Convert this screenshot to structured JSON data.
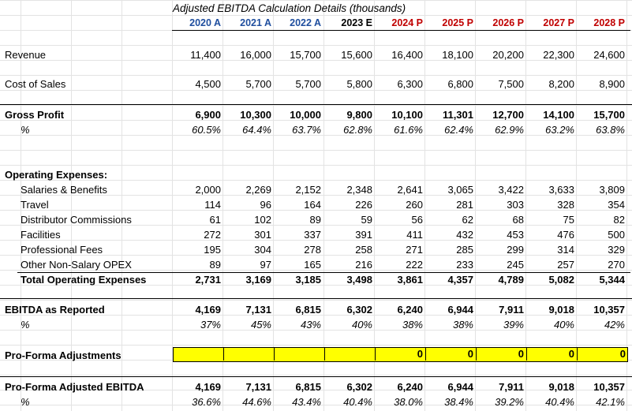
{
  "title": "Adjusted EBITDA Calculation Details (thousands)",
  "columns": [
    {
      "label": "2020 A",
      "color": "#1f4e9e"
    },
    {
      "label": "2021 A",
      "color": "#1f4e9e"
    },
    {
      "label": "2022 A",
      "color": "#1f4e9e"
    },
    {
      "label": "2023 E",
      "color": "#000000"
    },
    {
      "label": "2024 P",
      "color": "#c00000"
    },
    {
      "label": "2025 P",
      "color": "#c00000"
    },
    {
      "label": "2026 P",
      "color": "#c00000"
    },
    {
      "label": "2027 P",
      "color": "#c00000"
    },
    {
      "label": "2028 P",
      "color": "#c00000"
    }
  ],
  "revenue": {
    "label": "Revenue",
    "values": [
      "11,400",
      "16,000",
      "15,700",
      "15,600",
      "16,400",
      "18,100",
      "20,200",
      "22,300",
      "24,600"
    ]
  },
  "cost_of_sales": {
    "label": "Cost of Sales",
    "values": [
      "4,500",
      "5,700",
      "5,700",
      "5,800",
      "6,300",
      "6,800",
      "7,500",
      "8,200",
      "8,900"
    ]
  },
  "gross_profit": {
    "label": "Gross Profit",
    "values": [
      "6,900",
      "10,300",
      "10,000",
      "9,800",
      "10,100",
      "11,301",
      "12,700",
      "14,100",
      "15,700"
    ]
  },
  "gross_profit_pct": {
    "label": "%",
    "values": [
      "60.5%",
      "64.4%",
      "63.7%",
      "62.8%",
      "61.6%",
      "62.4%",
      "62.9%",
      "63.2%",
      "63.8%"
    ]
  },
  "opex_header": "Operating Expenses:",
  "opex_items": [
    {
      "label": "Salaries & Benefits",
      "values": [
        "2,000",
        "2,269",
        "2,152",
        "2,348",
        "2,641",
        "3,065",
        "3,422",
        "3,633",
        "3,809"
      ]
    },
    {
      "label": "Travel",
      "values": [
        "114",
        "96",
        "164",
        "226",
        "260",
        "281",
        "303",
        "328",
        "354"
      ]
    },
    {
      "label": "Distributor Commissions",
      "values": [
        "61",
        "102",
        "89",
        "59",
        "56",
        "62",
        "68",
        "75",
        "82"
      ]
    },
    {
      "label": "Facilities",
      "values": [
        "272",
        "301",
        "337",
        "391",
        "411",
        "432",
        "453",
        "476",
        "500"
      ]
    },
    {
      "label": "Professional Fees",
      "values": [
        "195",
        "304",
        "278",
        "258",
        "271",
        "285",
        "299",
        "314",
        "329"
      ]
    },
    {
      "label": "Other Non-Salary OPEX",
      "values": [
        "89",
        "97",
        "165",
        "216",
        "222",
        "233",
        "245",
        "257",
        "270"
      ]
    }
  ],
  "total_opex": {
    "label": "Total Operating Expenses",
    "values": [
      "2,731",
      "3,169",
      "3,185",
      "3,498",
      "3,861",
      "4,357",
      "4,789",
      "5,082",
      "5,344"
    ]
  },
  "ebitda_reported": {
    "label": "EBITDA as Reported",
    "values": [
      "4,169",
      "7,131",
      "6,815",
      "6,302",
      "6,240",
      "6,944",
      "7,911",
      "9,018",
      "10,357"
    ]
  },
  "ebitda_reported_pct": {
    "label": "%",
    "values": [
      "37%",
      "45%",
      "43%",
      "40%",
      "38%",
      "38%",
      "39%",
      "40%",
      "42%"
    ]
  },
  "proforma_adjustments": {
    "label": "Pro-Forma Adjustments",
    "values": [
      "",
      "",
      "",
      "",
      "0",
      "0",
      "0",
      "0",
      "0"
    ]
  },
  "proforma_ebitda": {
    "label": "Pro-Forma Adjusted EBITDA",
    "values": [
      "4,169",
      "7,131",
      "6,815",
      "6,302",
      "6,240",
      "6,944",
      "7,911",
      "9,018",
      "10,357"
    ]
  },
  "proforma_ebitda_pct": {
    "label": "%",
    "values": [
      "36.6%",
      "44.6%",
      "43.4%",
      "40.4%",
      "38.0%",
      "38.4%",
      "39.2%",
      "40.4%",
      "42.1%"
    ]
  }
}
